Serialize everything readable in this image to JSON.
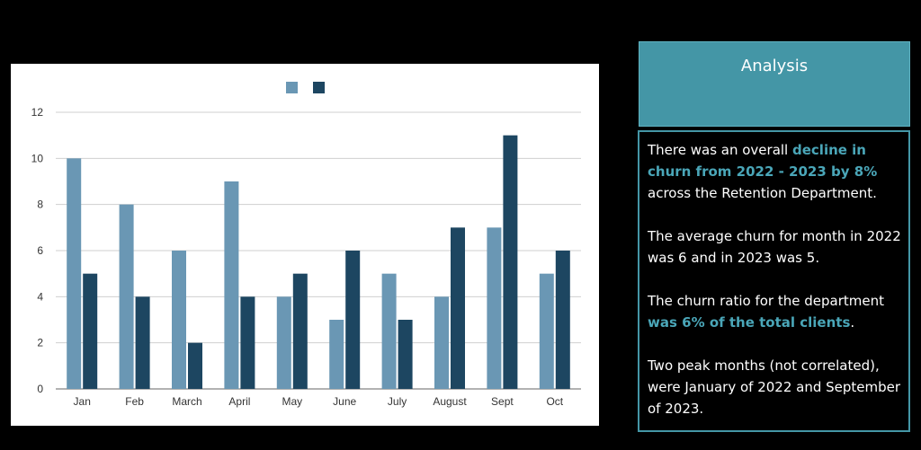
{
  "chart_data": {
    "type": "bar",
    "categories": [
      "Jan",
      "Feb",
      "March",
      "April",
      "May",
      "June",
      "July",
      "August",
      "Sept",
      "Oct"
    ],
    "series": [
      {
        "values": [
          10,
          8,
          6,
          9,
          4,
          3,
          5,
          4,
          7,
          5
        ],
        "color": "#6a97b4"
      },
      {
        "values": [
          5,
          4,
          2,
          4,
          5,
          6,
          3,
          7,
          11,
          6
        ],
        "color": "#1d4661"
      }
    ],
    "ylim": [
      0,
      12
    ],
    "yticks": [
      0,
      2,
      4,
      6,
      8,
      10,
      12
    ],
    "grid": true,
    "legend": "top-center"
  },
  "analysis": {
    "title": "Analysis",
    "p1_pre": "There was an overall ",
    "p1_hl": "decline in churn from 2022 - 2023 by 8%",
    "p1_post": " across the Retention Department.",
    "p2": "The average churn for month in 2022 was 6 and in 2023 was 5.",
    "p3_pre": "The churn ratio for the department ",
    "p3_hl": "was 6% of the total clients",
    "p3_post": ".",
    "p4": "Two peak months (not correlated), were January of 2022 and September of 2023."
  }
}
